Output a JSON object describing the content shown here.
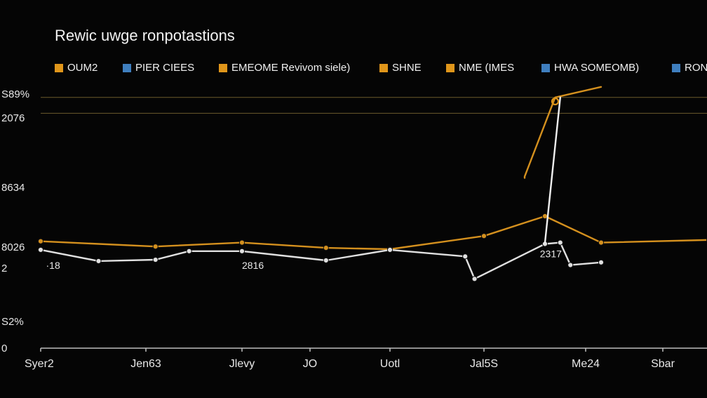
{
  "chart_data": {
    "type": "line",
    "title": "Rewic uwge ronpotastions",
    "xlabel": "",
    "ylabel": "",
    "categories": [
      "Syer2",
      "Jen63",
      "Jlevy",
      "JO",
      "Uotl",
      "Jal5S",
      "Me24",
      "Sbar"
    ],
    "y_ticks": [
      "S89%",
      "2076",
      "8634",
      "8026",
      "2",
      "S2%",
      "0"
    ],
    "legend": [
      {
        "label": "OUM2",
        "color": "#e0961a"
      },
      {
        "label": "PIER CIEES",
        "color": "#3f7fbf"
      },
      {
        "label": "EMEOME Revivom siele)",
        "color": "#e0961a"
      },
      {
        "label": "SHNE",
        "color": "#e0961a"
      },
      {
        "label": "NME (IMES",
        "color": "#e0961a"
      },
      {
        "label": "HWA SOMEOMB)",
        "color": "#3f7fbf"
      },
      {
        "label": "RON",
        "color": "#3f7fbf"
      }
    ],
    "series": [
      {
        "color": "#d4901e",
        "points": [
          [
            0,
            8.1
          ],
          [
            1.1,
            7.7
          ],
          [
            2,
            8.0
          ],
          [
            3.2,
            7.6
          ],
          [
            4,
            7.5
          ],
          [
            5,
            8.5
          ],
          [
            5.6,
            10.0
          ],
          [
            6.2,
            8.0
          ],
          [
            7.6,
            8.2
          ]
        ]
      },
      {
        "color": "#e0e0e0",
        "points": [
          [
            0,
            7.45
          ],
          [
            0.55,
            6.6
          ],
          [
            1.1,
            6.7
          ],
          [
            1.45,
            7.35
          ],
          [
            2,
            7.35
          ],
          [
            3.2,
            6.65
          ],
          [
            4,
            7.45
          ],
          [
            4.8,
            6.95
          ],
          [
            4.9,
            5.25
          ],
          [
            5.6,
            7.9
          ],
          [
            5.75,
            8.0
          ],
          [
            5.85,
            6.3
          ],
          [
            6.2,
            6.5
          ]
        ]
      },
      {
        "color": "#d4901e",
        "points": [
          [
            5.4,
            12.9
          ],
          [
            5.4,
            13.0
          ],
          [
            5.7,
            19.0
          ],
          [
            6.2,
            19.8
          ]
        ]
      },
      {
        "color": "#f0f0f0",
        "points": [
          [
            5.6,
            8.0
          ],
          [
            5.75,
            19.0
          ]
        ]
      }
    ],
    "highlight_markers": [
      {
        "series": 2,
        "x": 5.7,
        "y": 18.7,
        "color": "#e0961a"
      }
    ],
    "point_labels": [
      {
        "text": "·18",
        "x": 0.05,
        "y": 6.0
      },
      {
        "text": "2816",
        "x": 2.0,
        "y": 6.0
      },
      {
        "text": "2317",
        "x": 5.55,
        "y": 6.9
      }
    ],
    "ylim": [
      0,
      20
    ],
    "grid_y_at": [
      19.0,
      17.8
    ],
    "grid": true,
    "legend_position": "top"
  }
}
